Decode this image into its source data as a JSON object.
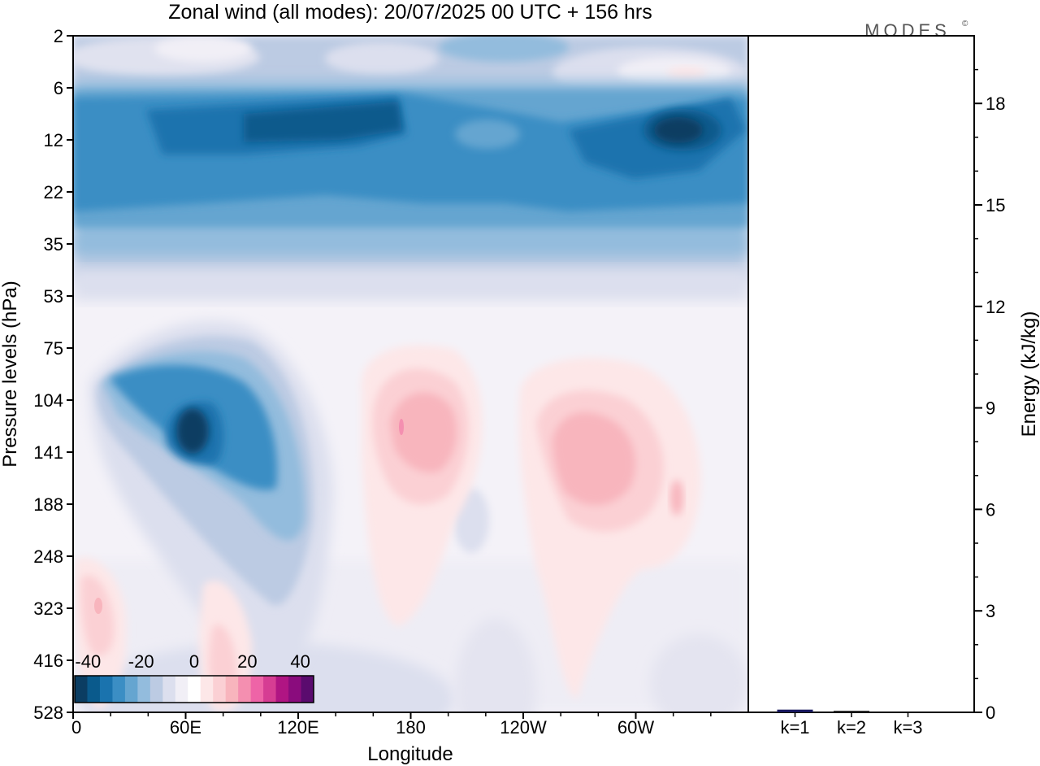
{
  "chart_data": {
    "type": "heatmap",
    "title": "Zonal wind (all modes):  20/07/2025  00 UTC  + 156 hrs",
    "brand": "MODES",
    "brand_mark": "©",
    "main_panel": {
      "xlabel": "Longitude",
      "ylabel": "Pressure levels (hPa)",
      "x_ticks": [
        "0",
        "60E",
        "120E",
        "180",
        "120W",
        "60W"
      ],
      "x_tick_values": [
        0,
        60,
        120,
        180,
        240,
        300
      ],
      "xlim": [
        0,
        360
      ],
      "y_ticks": [
        "2",
        "6",
        "12",
        "22",
        "35",
        "53",
        "75",
        "104",
        "141",
        "188",
        "248",
        "323",
        "416",
        "528"
      ],
      "colorbar": {
        "tick_labels": [
          "-40",
          "-20",
          "0",
          "20",
          "40"
        ],
        "tick_values": [
          -40,
          -20,
          0,
          20,
          40
        ],
        "levels": [
          -45,
          -40,
          -35,
          -30,
          -25,
          -20,
          -15,
          -10,
          -5,
          0,
          5,
          10,
          15,
          20,
          25,
          30,
          35,
          40,
          45
        ],
        "colors": [
          "#0b3d62",
          "#0a5a8c",
          "#1a73ae",
          "#3b8ec4",
          "#65a5d0",
          "#93bcdd",
          "#bccbe3",
          "#dcdfee",
          "#f1eff6",
          "#ffffff",
          "#fde7e8",
          "#fbd0d4",
          "#f8b5bd",
          "#f48fb0",
          "#ee64a7",
          "#d63d93",
          "#b01583",
          "#8a0c7d",
          "#5a0b6e"
        ]
      },
      "features": [
        {
          "name": "stratospheric easterly band",
          "lon_range": [
            0,
            360
          ],
          "level_range": [
            "6",
            "35"
          ],
          "value": -30
        },
        {
          "name": "strong easterly core east",
          "lon_range": [
            80,
            170
          ],
          "level_range": [
            "6",
            "22"
          ],
          "value": -35
        },
        {
          "name": "strong easterly core west",
          "lon_range": [
            295,
            345
          ],
          "level_range": [
            "6",
            "22"
          ],
          "value": -40
        },
        {
          "name": "upper weak easterly",
          "lon_range": [
            0,
            360
          ],
          "level_range": [
            "2",
            "6"
          ],
          "value": -10
        },
        {
          "name": "upper westerly patch",
          "lon_range": [
            310,
            345
          ],
          "level_range": [
            "2",
            "6"
          ],
          "value": 5
        },
        {
          "name": "TEJ easterly jet",
          "lon_range": [
            20,
            125
          ],
          "level_range": [
            "75",
            "248"
          ],
          "value": -25
        },
        {
          "name": "TEJ core",
          "lon_range": [
            50,
            80
          ],
          "level_range": [
            "104",
            "141"
          ],
          "value": -45
        },
        {
          "name": "westerly maximum near 180",
          "lon_range": [
            155,
            210
          ],
          "level_range": [
            "75",
            "323"
          ],
          "value": 15
        },
        {
          "name": "westerly maximum near 120W",
          "lon_range": [
            225,
            305
          ],
          "level_range": [
            "75",
            "416"
          ],
          "value": 15
        },
        {
          "name": "lower westerly near 0",
          "lon_range": [
            0,
            25
          ],
          "level_range": [
            "248",
            "416"
          ],
          "value": 10
        },
        {
          "name": "lower westerly near 75E",
          "lon_range": [
            60,
            95
          ],
          "level_range": [
            "323",
            "528"
          ],
          "value": 10
        }
      ]
    },
    "energy_panel": {
      "ylabel": "Energy (kJ/kg)",
      "categories": [
        "k=1",
        "k=2",
        "k=3"
      ],
      "values": [
        0.08,
        0.04,
        0.0
      ],
      "y_ticks": [
        "0",
        "3",
        "6",
        "9",
        "12",
        "15",
        "18"
      ],
      "y_tick_values": [
        0,
        3,
        6,
        9,
        12,
        15,
        18
      ],
      "ylim": [
        0,
        20
      ],
      "bar_colors": [
        "#17175e",
        "#2a2a2a",
        "#555555"
      ]
    }
  }
}
